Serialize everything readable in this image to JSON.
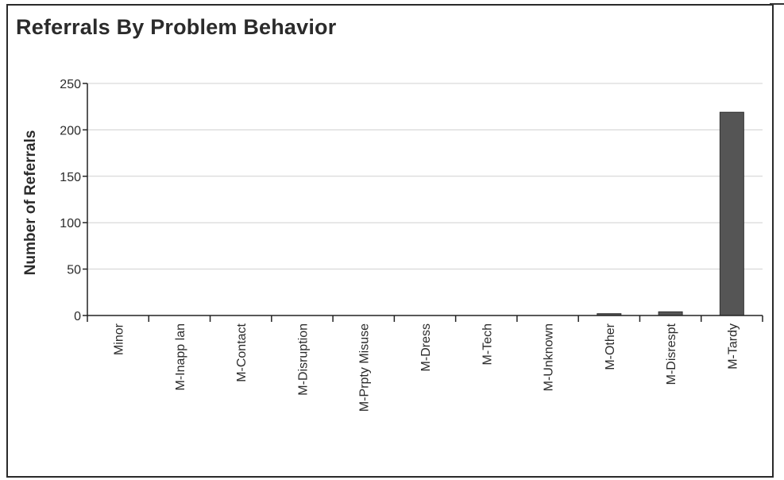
{
  "chart_data": {
    "type": "bar",
    "title": "Referrals By Problem Behavior",
    "xlabel": "",
    "ylabel": "Number of Referrals",
    "ylim": [
      0,
      250
    ],
    "yticks": [
      0,
      50,
      100,
      150,
      200,
      250
    ],
    "grid": true,
    "categories": [
      "Minor",
      "M-Inapp lan",
      "M-Contact",
      "M-Disruption",
      "M-Prpty Misuse",
      "M-Dress",
      "M-Tech",
      "M-Unknown",
      "M-Other",
      "M-Disrespt",
      "M-Tardy"
    ],
    "values": [
      0,
      0,
      0,
      0,
      0,
      0,
      0,
      0,
      2,
      4,
      219
    ],
    "colors": {
      "bar": "#555555",
      "grid": "#d0d0d0",
      "axis": "#222222",
      "text": "#2b2b2b"
    }
  }
}
